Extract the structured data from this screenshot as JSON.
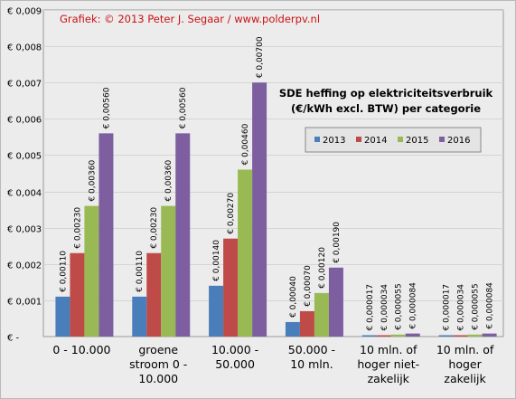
{
  "credit": "Grafiek: © 2013 Peter J. Segaar / www.polderpv.nl",
  "chart_data": {
    "type": "bar",
    "title": [
      "SDE heffing op elektriciteitsverbruik",
      "(€/kWh excl. BTW) per categorie"
    ],
    "categories": [
      [
        "0 - 10.000"
      ],
      [
        "groene",
        "stroom 0 -",
        "10.000"
      ],
      [
        "10.000 -",
        "50.000"
      ],
      [
        "50.000 -",
        "10 mln."
      ],
      [
        "10 mln. of",
        "hoger niet-",
        "zakelijk"
      ],
      [
        "10 mln. of",
        "hoger",
        "zakelijk"
      ]
    ],
    "series": [
      {
        "name": "2013",
        "color": "#4a7ebb",
        "values": [
          0.0011,
          0.0011,
          0.0014,
          0.0004,
          1.7e-05,
          1.7e-05
        ],
        "labels": [
          "€ 0,00110",
          "€ 0,00110",
          "€ 0,00140",
          "€ 0,00040",
          "€ 0,000017",
          "€ 0,000017"
        ]
      },
      {
        "name": "2014",
        "color": "#be4b48",
        "values": [
          0.0023,
          0.0023,
          0.0027,
          0.0007,
          3.4e-05,
          3.4e-05
        ],
        "labels": [
          "€ 0,00230",
          "€ 0,00230",
          "€ 0,00270",
          "€ 0,00070",
          "€ 0,000034",
          "€ 0,000034"
        ]
      },
      {
        "name": "2015",
        "color": "#98b954",
        "values": [
          0.0036,
          0.0036,
          0.0046,
          0.0012,
          5.5e-05,
          5.5e-05
        ],
        "labels": [
          "€ 0,00360",
          "€ 0,00360",
          "€ 0,00460",
          "€ 0,00120",
          "€ 0,000055",
          "€ 0,000055"
        ]
      },
      {
        "name": "2016",
        "color": "#7d5fa0",
        "values": [
          0.0056,
          0.0056,
          0.007,
          0.0019,
          8.4e-05,
          8.4e-05
        ],
        "labels": [
          "€ 0,00560",
          "€ 0,00560",
          "€ 0,00700",
          "€ 0,00190",
          "€ 0,000084",
          "€ 0,000084"
        ]
      }
    ],
    "yticks": [
      0,
      0.001,
      0.002,
      0.003,
      0.004,
      0.005,
      0.006,
      0.007,
      0.008,
      0.009
    ],
    "ytick_labels": [
      "€ -",
      "€ 0,001",
      "€ 0,002",
      "€ 0,003",
      "€ 0,004",
      "€ 0,005",
      "€ 0,006",
      "€ 0,007",
      "€ 0,008",
      "€ 0,009"
    ],
    "ylim": [
      0,
      0.009
    ],
    "xlabel": "",
    "ylabel": "",
    "grid": true,
    "legend_position": "right, inside plot"
  }
}
